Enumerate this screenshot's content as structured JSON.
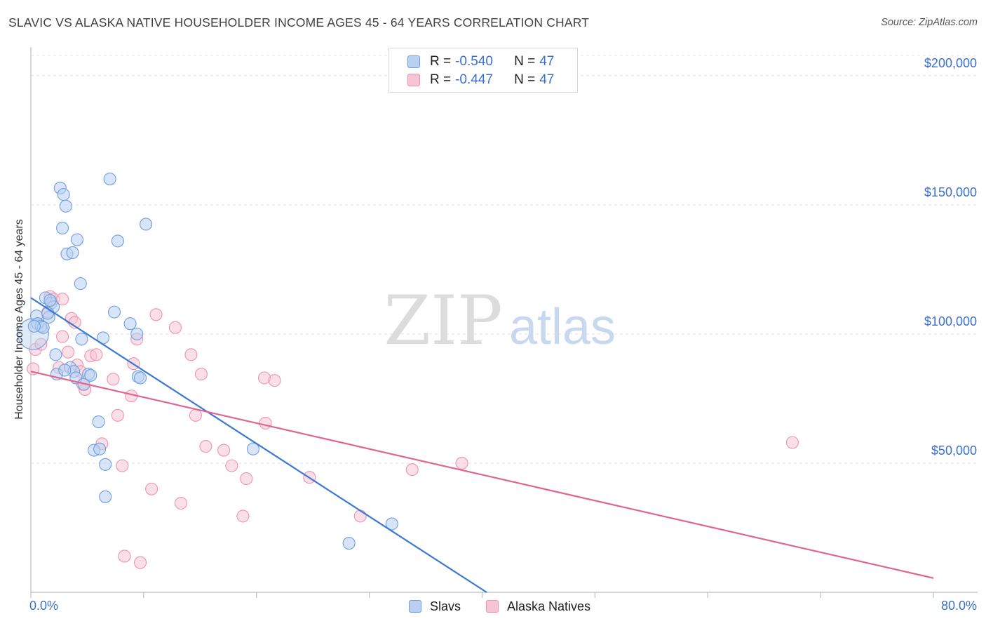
{
  "header": {
    "title": "SLAVIC VS ALASKA NATIVE HOUSEHOLDER INCOME AGES 45 - 64 YEARS CORRELATION CHART",
    "source": "Source: ZipAtlas.com"
  },
  "watermark": {
    "zip": "ZIP",
    "atlas": "atlas"
  },
  "colors": {
    "slavs_fill": "#b8d0f2",
    "slavs_stroke": "#6f9fde",
    "slavs_line": "#3a78d4",
    "natives_fill": "#f8c4d3",
    "natives_stroke": "#ec94b0",
    "natives_line": "#e0668f",
    "axis_label": "#3b6fcf",
    "grid": "#e2e2e2"
  },
  "legend": {
    "rows": [
      {
        "series": "Slavs",
        "r_label": "R =",
        "r_value": "-0.540",
        "n_label": "N =",
        "n_value": "47"
      },
      {
        "series": "Alaska Natives",
        "r_label": "R =",
        "r_value": "-0.447",
        "n_label": "N =",
        "n_value": "47"
      }
    ]
  },
  "chart_data": {
    "type": "scatter",
    "title": "SLAVIC VS ALASKA NATIVE HOUSEHOLDER INCOME AGES 45 - 64 YEARS CORRELATION CHART",
    "xlabel": "",
    "ylabel": "Householder Income Ages 45 - 64 years",
    "xlim": [
      0,
      80
    ],
    "ylim": [
      0,
      210000
    ],
    "x_tick_labels": {
      "left": "0.0%",
      "right": "80.0%"
    },
    "y_ticks": [
      {
        "value": 50000,
        "label": "$50,000"
      },
      {
        "value": 100000,
        "label": "$100,000"
      },
      {
        "value": 150000,
        "label": "$150,000"
      },
      {
        "value": 200000,
        "label": "$200,000"
      }
    ],
    "grid": true,
    "legend_position": "bottom-center",
    "series": [
      {
        "name": "Slavs",
        "trend": {
          "x": [
            0,
            40.4
          ],
          "y": [
            114000,
            0
          ]
        },
        "points": [
          {
            "x": 0.2,
            "y": 100000,
            "big": true
          },
          {
            "x": 0.5,
            "y": 107000
          },
          {
            "x": 0.6,
            "y": 104000
          },
          {
            "x": 0.9,
            "y": 103000
          },
          {
            "x": 1.1,
            "y": 102500
          },
          {
            "x": 1.3,
            "y": 114000
          },
          {
            "x": 1.6,
            "y": 106500
          },
          {
            "x": 1.8,
            "y": 112000
          },
          {
            "x": 2.0,
            "y": 110500
          },
          {
            "x": 2.2,
            "y": 92000
          },
          {
            "x": 2.6,
            "y": 156500
          },
          {
            "x": 2.8,
            "y": 141000
          },
          {
            "x": 2.9,
            "y": 154000
          },
          {
            "x": 3.1,
            "y": 149500
          },
          {
            "x": 3.2,
            "y": 131000
          },
          {
            "x": 3.5,
            "y": 87000
          },
          {
            "x": 3.7,
            "y": 131500
          },
          {
            "x": 3.8,
            "y": 85500
          },
          {
            "x": 4.0,
            "y": 83000
          },
          {
            "x": 4.1,
            "y": 136500
          },
          {
            "x": 4.4,
            "y": 119500
          },
          {
            "x": 4.5,
            "y": 98000
          },
          {
            "x": 4.7,
            "y": 80500
          },
          {
            "x": 5.1,
            "y": 84500
          },
          {
            "x": 2.3,
            "y": 84500
          },
          {
            "x": 5.6,
            "y": 55000
          },
          {
            "x": 6.0,
            "y": 66000
          },
          {
            "x": 6.1,
            "y": 55500
          },
          {
            "x": 6.4,
            "y": 98500
          },
          {
            "x": 6.6,
            "y": 49500
          },
          {
            "x": 6.6,
            "y": 37000
          },
          {
            "x": 7.0,
            "y": 160000
          },
          {
            "x": 7.4,
            "y": 108500
          },
          {
            "x": 7.7,
            "y": 136000
          },
          {
            "x": 8.8,
            "y": 104000
          },
          {
            "x": 9.4,
            "y": 100000
          },
          {
            "x": 9.5,
            "y": 83500
          },
          {
            "x": 9.7,
            "y": 83000
          },
          {
            "x": 10.2,
            "y": 142500
          },
          {
            "x": 19.7,
            "y": 55500
          },
          {
            "x": 28.2,
            "y": 19000
          },
          {
            "x": 32.0,
            "y": 26500
          },
          {
            "x": 1.5,
            "y": 108000
          },
          {
            "x": 3.0,
            "y": 86000
          },
          {
            "x": 0.3,
            "y": 103000
          },
          {
            "x": 5.3,
            "y": 84000
          },
          {
            "x": 1.7,
            "y": 113000
          }
        ]
      },
      {
        "name": "Alaska Natives",
        "trend": {
          "x": [
            0,
            80
          ],
          "y": [
            85500,
            5500
          ]
        },
        "points": [
          {
            "x": 0.2,
            "y": 86500
          },
          {
            "x": 0.4,
            "y": 94000
          },
          {
            "x": 0.9,
            "y": 96000
          },
          {
            "x": 1.5,
            "y": 108500
          },
          {
            "x": 1.7,
            "y": 114500
          },
          {
            "x": 2.0,
            "y": 113500
          },
          {
            "x": 2.8,
            "y": 99000
          },
          {
            "x": 2.8,
            "y": 113500
          },
          {
            "x": 3.3,
            "y": 93000
          },
          {
            "x": 3.6,
            "y": 106000
          },
          {
            "x": 3.9,
            "y": 104500
          },
          {
            "x": 4.1,
            "y": 88000
          },
          {
            "x": 4.4,
            "y": 85500
          },
          {
            "x": 4.6,
            "y": 80500
          },
          {
            "x": 4.8,
            "y": 78500
          },
          {
            "x": 5.3,
            "y": 91500
          },
          {
            "x": 5.8,
            "y": 92000
          },
          {
            "x": 6.3,
            "y": 57500
          },
          {
            "x": 7.3,
            "y": 82500
          },
          {
            "x": 7.7,
            "y": 68500
          },
          {
            "x": 8.1,
            "y": 49000
          },
          {
            "x": 8.3,
            "y": 14000
          },
          {
            "x": 8.9,
            "y": 76000
          },
          {
            "x": 9.1,
            "y": 88500
          },
          {
            "x": 9.4,
            "y": 98000
          },
          {
            "x": 9.7,
            "y": 11500
          },
          {
            "x": 10.7,
            "y": 40000
          },
          {
            "x": 11.1,
            "y": 107500
          },
          {
            "x": 12.8,
            "y": 102500
          },
          {
            "x": 13.3,
            "y": 34500
          },
          {
            "x": 14.2,
            "y": 92000
          },
          {
            "x": 14.6,
            "y": 68500
          },
          {
            "x": 15.1,
            "y": 84500
          },
          {
            "x": 15.5,
            "y": 56500
          },
          {
            "x": 17.1,
            "y": 55000
          },
          {
            "x": 17.8,
            "y": 49000
          },
          {
            "x": 18.8,
            "y": 29500
          },
          {
            "x": 19.1,
            "y": 44000
          },
          {
            "x": 20.7,
            "y": 83000
          },
          {
            "x": 20.8,
            "y": 65500
          },
          {
            "x": 21.6,
            "y": 82000
          },
          {
            "x": 24.7,
            "y": 44500
          },
          {
            "x": 29.2,
            "y": 29500
          },
          {
            "x": 33.8,
            "y": 47500
          },
          {
            "x": 38.2,
            "y": 50000
          },
          {
            "x": 67.5,
            "y": 58000
          },
          {
            "x": 2.5,
            "y": 87000
          }
        ]
      }
    ]
  }
}
